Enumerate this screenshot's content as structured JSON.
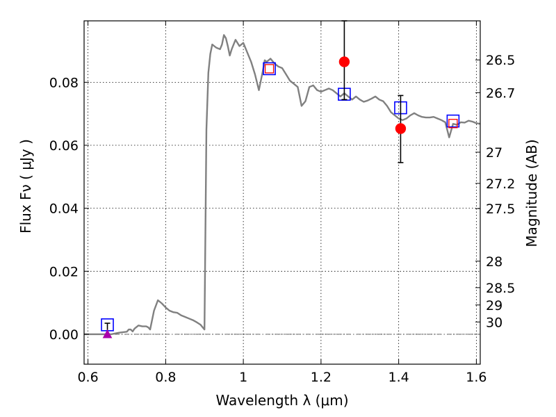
{
  "chart_data": {
    "type": "line",
    "xlabel": "Wavelength  λ (μm)",
    "ylabel": "Flux  Fν  ( μJy )",
    "y2label": "Magnitude (AB)",
    "xlim": [
      0.59,
      1.61
    ],
    "ylim": [
      -0.0095,
      0.0995
    ],
    "grid": true,
    "x_ticks": [
      {
        "value": 0.6,
        "label": "0.6"
      },
      {
        "value": 0.8,
        "label": "0.8"
      },
      {
        "value": 1.0,
        "label": "1"
      },
      {
        "value": 1.2,
        "label": "1.2"
      },
      {
        "value": 1.4,
        "label": "1.4"
      },
      {
        "value": 1.6,
        "label": "1.6"
      }
    ],
    "y_ticks": [
      {
        "value": 0.0,
        "label": "0.00"
      },
      {
        "value": 0.02,
        "label": "0.02"
      },
      {
        "value": 0.04,
        "label": "0.04"
      },
      {
        "value": 0.06,
        "label": "0.06"
      },
      {
        "value": 0.08,
        "label": "0.08"
      }
    ],
    "mag_ticks": [
      {
        "flux": 0.0871,
        "label": "26.5"
      },
      {
        "flux": 0.0767,
        "label": "26.7"
      },
      {
        "flux": 0.0578,
        "label": "27"
      },
      {
        "flux": 0.0479,
        "label": "27.2"
      },
      {
        "flux": 0.0399,
        "label": "27.5"
      },
      {
        "flux": 0.0232,
        "label": "28"
      },
      {
        "flux": 0.0148,
        "label": "28.5"
      },
      {
        "flux": 0.0093,
        "label": "29"
      },
      {
        "flux": 0.0039,
        "label": "30"
      }
    ],
    "series": [
      {
        "kind": "model-spectrum",
        "color": "#808080",
        "x": [
          0.59,
          0.66,
          0.68,
          0.7,
          0.705,
          0.71,
          0.715,
          0.72,
          0.73,
          0.74,
          0.75,
          0.755,
          0.76,
          0.77,
          0.78,
          0.79,
          0.8,
          0.81,
          0.82,
          0.83,
          0.84,
          0.85,
          0.86,
          0.87,
          0.88,
          0.89,
          0.9,
          0.905,
          0.91,
          0.915,
          0.92,
          0.93,
          0.94,
          0.945,
          0.95,
          0.955,
          0.96,
          0.965,
          0.97,
          0.98,
          0.99,
          1.0,
          1.01,
          1.02,
          1.03,
          1.04,
          1.05,
          1.055,
          1.06,
          1.07,
          1.08,
          1.09,
          1.1,
          1.11,
          1.12,
          1.13,
          1.14,
          1.15,
          1.16,
          1.17,
          1.18,
          1.19,
          1.2,
          1.21,
          1.22,
          1.23,
          1.24,
          1.25,
          1.26,
          1.27,
          1.28,
          1.29,
          1.3,
          1.31,
          1.32,
          1.33,
          1.34,
          1.35,
          1.36,
          1.37,
          1.38,
          1.39,
          1.4,
          1.41,
          1.42,
          1.43,
          1.44,
          1.45,
          1.46,
          1.47,
          1.48,
          1.49,
          1.5,
          1.51,
          1.52,
          1.53,
          1.54,
          1.55,
          1.56,
          1.57,
          1.58,
          1.59,
          1.6,
          1.61
        ],
        "y": [
          0.0,
          0.0,
          0.0005,
          0.0008,
          0.0015,
          0.0015,
          0.0009,
          0.0018,
          0.0028,
          0.0025,
          0.0025,
          0.0022,
          0.0015,
          0.0075,
          0.0108,
          0.0098,
          0.0085,
          0.0075,
          0.007,
          0.0068,
          0.006,
          0.0055,
          0.005,
          0.0045,
          0.0038,
          0.003,
          0.0015,
          0.065,
          0.083,
          0.089,
          0.092,
          0.091,
          0.0905,
          0.092,
          0.095,
          0.094,
          0.0915,
          0.0885,
          0.0905,
          0.0935,
          0.0915,
          0.0925,
          0.0895,
          0.0865,
          0.0825,
          0.0775,
          0.0835,
          0.087,
          0.0865,
          0.0875,
          0.086,
          0.085,
          0.0845,
          0.0825,
          0.0805,
          0.0795,
          0.0785,
          0.0725,
          0.074,
          0.0785,
          0.079,
          0.0775,
          0.077,
          0.0775,
          0.078,
          0.0775,
          0.0765,
          0.0755,
          0.0765,
          0.0755,
          0.0745,
          0.0755,
          0.0745,
          0.0738,
          0.0742,
          0.0748,
          0.0755,
          0.0745,
          0.074,
          0.0725,
          0.0705,
          0.0695,
          0.0685,
          0.068,
          0.0685,
          0.0695,
          0.0702,
          0.0695,
          0.069,
          0.0688,
          0.0688,
          0.069,
          0.0685,
          0.068,
          0.0673,
          0.0625,
          0.0668,
          0.0665,
          0.0673,
          0.0672,
          0.0678,
          0.0675,
          0.067,
          0.0668
        ]
      },
      {
        "kind": "model-photometry",
        "marker": "open-square",
        "color": "#0000ff",
        "x": [
          0.65,
          1.067,
          1.26,
          1.405,
          1.54
        ],
        "y": [
          0.003,
          0.0843,
          0.0762,
          0.0719,
          0.0677
        ]
      },
      {
        "kind": "observed-photometry-small",
        "marker": "open-square",
        "color": "#ff0000",
        "x": [
          1.067,
          1.54
        ],
        "y": [
          0.0843,
          0.0669
        ]
      },
      {
        "kind": "detections",
        "marker": "filled-circle",
        "color": "#ff0000",
        "x": [
          1.26,
          1.405
        ],
        "y": [
          0.0865,
          0.0653
        ],
        "yerr_low": [
          0.0745,
          0.0545
        ],
        "yerr_high": [
          0.0995,
          0.0758
        ]
      },
      {
        "kind": "upper-limit",
        "marker": "triangle",
        "color": "#aa00aa",
        "x": [
          0.65
        ],
        "y": [
          0.0
        ],
        "yerr_high": [
          0.0035
        ]
      }
    ],
    "zero_line": {
      "y": 0.0,
      "style": "dash-dot",
      "color": "#555555"
    }
  }
}
